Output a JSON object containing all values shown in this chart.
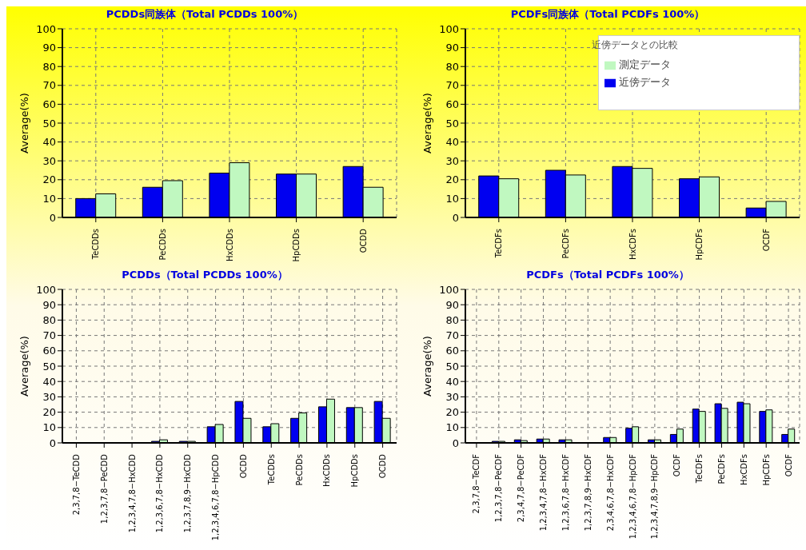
{
  "chart_data": [
    {
      "type": "bar",
      "title": "PCDDs同族体（Total PCDDs 100%）",
      "ylabel": "Average(%)",
      "categories": [
        "TeCDDs",
        "PeCDDs",
        "HxCDDs",
        "HpCDDs",
        "OCDD"
      ],
      "series": [
        {
          "color": "#0000f0",
          "values": [
            10,
            16,
            23.5,
            23,
            27
          ]
        },
        {
          "color": "#c0f8c0",
          "values": [
            12.5,
            19.5,
            29,
            23,
            16
          ]
        }
      ],
      "ylim": [
        0,
        100
      ],
      "yticks": [
        0,
        10,
        20,
        30,
        40,
        50,
        60,
        70,
        80,
        90,
        100
      ],
      "grid": true,
      "legend": false
    },
    {
      "type": "bar",
      "title": "PCDFs同族体（Total PCDFs 100%）",
      "ylabel": "Average(%)",
      "categories": [
        "TeCDFs",
        "PeCDFs",
        "HxCDFs",
        "HpCDFs",
        "OCDF"
      ],
      "series": [
        {
          "name": "近傍データ",
          "color": "#0000f0",
          "values": [
            22,
            25,
            27,
            20.5,
            5
          ]
        },
        {
          "name": "測定データ",
          "color": "#c0f8c0",
          "values": [
            20.5,
            22.5,
            26,
            21.5,
            8.5
          ]
        }
      ],
      "ylim": [
        0,
        100
      ],
      "yticks": [
        0,
        10,
        20,
        30,
        40,
        50,
        60,
        70,
        80,
        90,
        100
      ],
      "grid": true,
      "legend": "top right",
      "legend_title": "近傍データとの比較"
    },
    {
      "type": "bar",
      "title": "PCDDs（Total PCDDs 100%）",
      "ylabel": "Average(%)",
      "categories": [
        "2,3,7,8−TeCDD",
        "1,2,3,7,8−PeCDD",
        "1,2,3,4,7,8−HxCDD",
        "1,2,3,6,7,8−HxCDD",
        "1,2,3,7,8,9−HxCDD",
        "1,2,3,4,6,7,8−HpCDD",
        "OCDD",
        "TeCDDs",
        "PeCDDs",
        "HxCDDs",
        "HpCDDs",
        "OCDD"
      ],
      "series": [
        {
          "color": "#0000f0",
          "values": [
            0,
            0,
            0,
            1,
            1,
            10.5,
            27,
            10.5,
            16,
            23.5,
            23,
            27
          ]
        },
        {
          "color": "#c0f8c0",
          "values": [
            0,
            0,
            0,
            2,
            1,
            12,
            16,
            12.5,
            19.5,
            28.5,
            23,
            16
          ]
        }
      ],
      "ylim": [
        0,
        100
      ],
      "yticks": [
        0,
        10,
        20,
        30,
        40,
        50,
        60,
        70,
        80,
        90,
        100
      ],
      "grid": true,
      "legend": false
    },
    {
      "type": "bar",
      "title": "PCDFs（Total PCDFs 100%）",
      "ylabel": "Average(%)",
      "categories": [
        "2,3,7,8−TeCDF",
        "1,2,3,7,8−PeCDF",
        "2,3,4,7,8−PeCDF",
        "1,2,3,4,7,8−HxCDF",
        "1,2,3,6,7,8−HxCDF",
        "1,2,3,7,8,9−HxCDF",
        "2,3,4,6,7,8−HxCDF",
        "1,2,3,4,6,7,8−HpCDF",
        "1,2,3,4,7,8,9−HpCDF",
        "OCDF",
        "TeCDFs",
        "PeCDFs",
        "HxCDFs",
        "HpCDFs",
        "OCDF"
      ],
      "series": [
        {
          "color": "#0000f0",
          "values": [
            0,
            1,
            2,
            2.5,
            2,
            0,
            3.5,
            9.5,
            2,
            5.5,
            22,
            25.5,
            26.5,
            20.5,
            5.5
          ]
        },
        {
          "color": "#c0f8c0",
          "values": [
            0,
            1,
            1.5,
            2.5,
            2,
            0,
            3.5,
            10.5,
            2,
            9,
            20.5,
            22.5,
            25.5,
            21.5,
            9
          ]
        }
      ],
      "ylim": [
        0,
        100
      ],
      "yticks": [
        0,
        10,
        20,
        30,
        40,
        50,
        60,
        70,
        80,
        90,
        100
      ],
      "grid": true,
      "legend": false
    }
  ]
}
